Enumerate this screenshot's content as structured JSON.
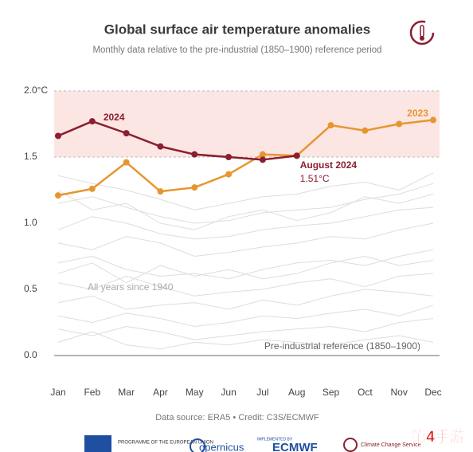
{
  "chart_data": {
    "type": "line",
    "title": "Global surface air temperature anomalies",
    "subtitle": "Monthly data relative to the pre-industrial (1850–1900) reference period",
    "categories": [
      "Jan",
      "Feb",
      "Mar",
      "Apr",
      "May",
      "Jun",
      "Jul",
      "Aug",
      "Sep",
      "Oct",
      "Nov",
      "Dec"
    ],
    "series": [
      {
        "name": "2023",
        "color": "#e8952f",
        "values": [
          1.21,
          1.26,
          1.46,
          1.24,
          1.27,
          1.37,
          1.52,
          1.51,
          1.74,
          1.7,
          1.75,
          1.78
        ]
      },
      {
        "name": "2024",
        "color": "#8b1e2f",
        "values": [
          1.66,
          1.77,
          1.68,
          1.58,
          1.52,
          1.5,
          1.48,
          1.51,
          null,
          null,
          null,
          null
        ]
      }
    ],
    "background_color": "#dddddd",
    "background_series": [
      [
        1.36,
        1.3,
        1.25,
        1.18,
        1.1,
        1.15,
        1.2,
        1.22,
        1.28,
        1.31,
        1.25,
        1.38
      ],
      [
        1.15,
        1.2,
        1.12,
        1.05,
        1.0,
        1.02,
        1.08,
        1.1,
        1.12,
        1.18,
        1.22,
        1.3
      ],
      [
        0.95,
        1.05,
        1.0,
        0.92,
        0.88,
        0.9,
        0.95,
        0.98,
        1.0,
        1.05,
        1.1,
        1.12
      ],
      [
        0.85,
        0.8,
        0.9,
        0.85,
        0.75,
        0.78,
        0.82,
        0.85,
        0.9,
        0.88,
        0.95,
        1.0
      ],
      [
        0.7,
        0.75,
        0.65,
        0.6,
        0.62,
        0.58,
        0.65,
        0.7,
        0.72,
        0.68,
        0.75,
        0.8
      ],
      [
        0.55,
        0.5,
        0.6,
        0.52,
        0.45,
        0.48,
        0.5,
        0.55,
        0.58,
        0.52,
        0.6,
        0.62
      ],
      [
        0.4,
        0.45,
        0.35,
        0.38,
        0.4,
        0.35,
        0.42,
        0.38,
        0.45,
        0.5,
        0.48,
        0.45
      ],
      [
        0.3,
        0.25,
        0.32,
        0.28,
        0.22,
        0.25,
        0.3,
        0.28,
        0.32,
        0.35,
        0.3,
        0.38
      ],
      [
        0.2,
        0.15,
        0.22,
        0.18,
        0.12,
        0.15,
        0.18,
        0.2,
        0.22,
        0.18,
        0.25,
        0.28
      ],
      [
        0.1,
        0.18,
        0.08,
        0.05,
        0.1,
        0.08,
        0.12,
        0.1,
        0.08,
        0.12,
        0.15,
        0.1
      ],
      [
        1.25,
        1.1,
        1.15,
        1.0,
        0.95,
        1.05,
        1.1,
        1.02,
        1.08,
        1.2,
        1.15,
        1.22
      ],
      [
        0.62,
        0.7,
        0.55,
        0.68,
        0.6,
        0.65,
        0.58,
        0.62,
        0.7,
        0.75,
        0.68,
        0.72
      ]
    ],
    "ylim": [
      0,
      2
    ],
    "yticks": [
      {
        "value": 0,
        "label": "0.0"
      },
      0.5,
      {
        "value": 1,
        "label": "1.0"
      },
      1.5,
      {
        "value": 2,
        "label": "2.0°C"
      }
    ],
    "highlight_band": [
      1.5,
      2
    ],
    "band_color": "#fbe6e3",
    "annotations": {
      "label_2024": "2024",
      "label_2023": "2023",
      "august": "August 2024",
      "august_value": "1.51°C",
      "all_years": "All years since 1940",
      "reference": "Pre-industrial reference (1850–1900)"
    },
    "source": "Data source: ERA5 • Credit: C3S/ECMWF"
  },
  "footer": {
    "eu": "PROGRAMME OF THE EUROPEAN UNION",
    "copernicus": "opernicus",
    "implemented": "IMPLEMENTED BY",
    "ecmwf": "ECMWF",
    "c3s": "Climate Change Service",
    "watermark": "第4手游"
  }
}
